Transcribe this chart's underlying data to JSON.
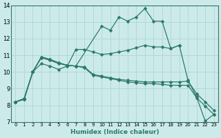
{
  "xlabel": "Humidex (Indice chaleur)",
  "xlim": [
    -0.5,
    23.5
  ],
  "ylim": [
    7,
    14
  ],
  "yticks": [
    7,
    8,
    9,
    10,
    11,
    12,
    13,
    14
  ],
  "xticks": [
    0,
    1,
    2,
    3,
    4,
    5,
    6,
    7,
    8,
    9,
    10,
    11,
    12,
    13,
    14,
    15,
    16,
    17,
    18,
    19,
    20,
    21,
    22,
    23
  ],
  "bg_color": "#cdeaea",
  "grid_color": "#b0d8d8",
  "line_color": "#2a7a6a",
  "series": [
    {
      "x": [
        0,
        1,
        2,
        3,
        4,
        5,
        6,
        7,
        10,
        11,
        12,
        13,
        14,
        15,
        16,
        17,
        18,
        19
      ],
      "y": [
        8.2,
        8.4,
        10.0,
        10.9,
        10.75,
        10.55,
        10.4,
        10.35,
        12.75,
        12.5,
        13.3,
        13.05,
        13.3,
        13.8,
        13.05,
        13.05,
        11.4,
        11.6
      ]
    },
    {
      "x": [
        0,
        1,
        2,
        3,
        4,
        5,
        6,
        7,
        8,
        9,
        10,
        11,
        12,
        13,
        14,
        15,
        16,
        17,
        18,
        19,
        20,
        21,
        22,
        23
      ],
      "y": [
        8.2,
        8.4,
        10.0,
        10.5,
        10.35,
        10.15,
        10.35,
        11.35,
        11.35,
        11.2,
        11.05,
        11.1,
        11.2,
        11.3,
        11.45,
        11.6,
        11.5,
        11.5,
        11.4,
        11.6,
        9.5,
        8.5,
        7.05,
        7.45
      ]
    },
    {
      "x": [
        0,
        1,
        2,
        3,
        4,
        5,
        6,
        7,
        8,
        9,
        10,
        11,
        12,
        13,
        14,
        15,
        16,
        17,
        18,
        19,
        20,
        21,
        22,
        23
      ],
      "y": [
        8.2,
        8.35,
        10.0,
        10.9,
        10.75,
        10.55,
        10.4,
        10.35,
        10.3,
        9.85,
        9.75,
        9.65,
        9.55,
        9.5,
        9.45,
        9.4,
        9.4,
        9.4,
        9.4,
        9.4,
        9.45,
        8.7,
        8.2,
        7.7
      ]
    },
    {
      "x": [
        0,
        1,
        2,
        3,
        4,
        5,
        6,
        7,
        8,
        9,
        10,
        11,
        12,
        13,
        14,
        15,
        16,
        17,
        18,
        19,
        20,
        21,
        22,
        23
      ],
      "y": [
        8.2,
        8.35,
        10.0,
        10.85,
        10.7,
        10.5,
        10.4,
        10.35,
        10.25,
        9.8,
        9.7,
        9.6,
        9.5,
        9.4,
        9.35,
        9.3,
        9.3,
        9.25,
        9.2,
        9.2,
        9.2,
        8.45,
        7.95,
        7.45
      ]
    }
  ]
}
